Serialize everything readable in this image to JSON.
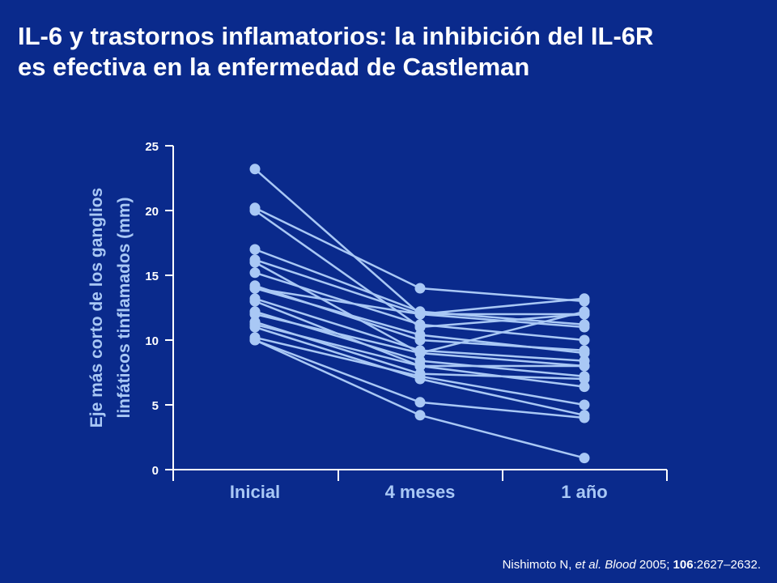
{
  "title": {
    "line1": "IL-6 y trastornos inflamatorios: la inhibición del IL-6R",
    "line2": "es efectiva en la enfermedad de Castleman"
  },
  "colors": {
    "background": "#0a2a8c",
    "series": "#a9c8f5",
    "axis_text": "#a9c8f5",
    "title": "#ffffff"
  },
  "citation": {
    "authors": "Nishimoto N, ",
    "etal": "et al.",
    "journal": " Blood",
    "year": " 2005; ",
    "volume": "106",
    "pages": ":2627–2632."
  },
  "chart_data": {
    "type": "line",
    "ylabel_line1": "Eje más corto de los ganglios",
    "ylabel_line2": "linfáticos tinflamados (mm)",
    "xlabel": "",
    "categories": [
      "Inicial",
      "4 meses",
      "1 año"
    ],
    "ylim": [
      0,
      25
    ],
    "yticks": [
      0,
      5,
      10,
      15,
      20,
      25
    ],
    "grid": false,
    "legend": "none",
    "series": [
      {
        "values": [
          23.2,
          12.0,
          12.0
        ]
      },
      {
        "values": [
          20.2,
          14.0,
          13.0
        ]
      },
      {
        "values": [
          20.0,
          11.0,
          12.0
        ]
      },
      {
        "values": [
          17.0,
          12.2,
          11.2
        ]
      },
      {
        "values": [
          16.2,
          12.0,
          13.2
        ]
      },
      {
        "values": [
          16.0,
          9.0,
          12.2
        ]
      },
      {
        "values": [
          15.2,
          11.2,
          10.0
        ]
      },
      {
        "values": [
          14.2,
          10.0,
          9.2
        ]
      },
      {
        "values": [
          14.0,
          12.0,
          11.0
        ]
      },
      {
        "values": [
          13.2,
          9.2,
          8.4
        ]
      },
      {
        "values": [
          13.0,
          8.0,
          8.0
        ]
      },
      {
        "values": [
          12.2,
          8.4,
          7.2
        ]
      },
      {
        "values": [
          12.0,
          9.0,
          8.0
        ]
      },
      {
        "values": [
          11.4,
          7.4,
          7.0
        ]
      },
      {
        "values": [
          11.2,
          8.0,
          6.4
        ]
      },
      {
        "values": [
          10.2,
          7.2,
          5.0
        ]
      },
      {
        "values": [
          10.0,
          5.2,
          4.0
        ]
      },
      {
        "values": [
          10.0,
          4.2,
          0.9
        ]
      },
      {
        "values": [
          11.0,
          7.0,
          4.2
        ]
      },
      {
        "values": [
          14.0,
          10.4,
          9.0
        ]
      }
    ]
  }
}
